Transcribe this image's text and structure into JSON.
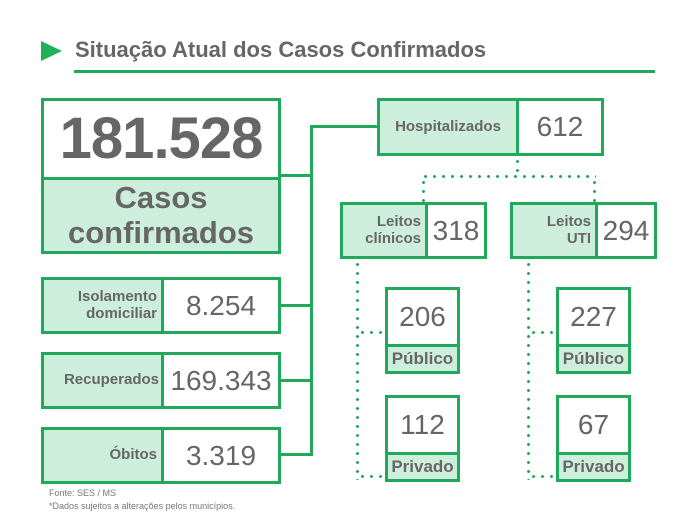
{
  "title": "Situação Atual dos Casos Confirmados",
  "colors": {
    "accent": "#21a95b",
    "label_fill": "#cdeedd",
    "text": "#666666"
  },
  "icons": {
    "title_marker": "play-triangle-icon"
  },
  "confirmed": {
    "value": "181.528",
    "label_line1": "Casos",
    "label_line2": "confirmados"
  },
  "isolation": {
    "label_line1": "Isolamento",
    "label_line2": "domiciliar",
    "value": "8.254"
  },
  "recovered": {
    "label": "Recuperados",
    "value": "169.343"
  },
  "deaths": {
    "label": "Óbitos",
    "value": "3.319"
  },
  "hospitalized": {
    "label": "Hospitalizados",
    "value": "612"
  },
  "clinical": {
    "label_line1": "Leitos",
    "label_line2": "clínicos",
    "value": "318",
    "public": {
      "value": "206",
      "label": "Público"
    },
    "private": {
      "value": "112",
      "label": "Privado"
    }
  },
  "icu": {
    "label_line1": "Leitos",
    "label_line2": "UTI",
    "value": "294",
    "public": {
      "value": "227",
      "label": "Público"
    },
    "private": {
      "value": "67",
      "label": "Privado"
    }
  },
  "footer": {
    "source": "Fonte: SES / MS",
    "note": "*Dados sujeitos a alterações pelos municípios."
  }
}
